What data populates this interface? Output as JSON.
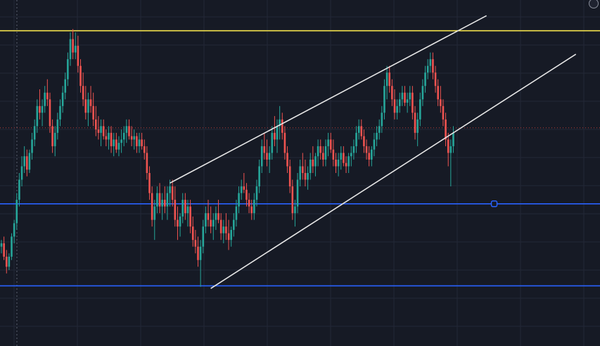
{
  "colors": {
    "background": "#161a25",
    "grid": "#232836",
    "up_candle": "#26a69a",
    "down_candle": "#ef5350",
    "resistance_line": "#f2e14c",
    "support_line": "#2962ff",
    "channel_line": "#e6e6e6",
    "last_price_dotted": "#b23a3a",
    "crosshair": "#5a6070"
  },
  "widget": {
    "badge_icon": "settings-dot-icon",
    "badge_text": ""
  },
  "chart_data": {
    "type": "candlestick",
    "title": "",
    "xlabel": "",
    "ylabel": "",
    "grid": true,
    "ylim": [
      0,
      100
    ],
    "xlim": [
      0,
      235
    ],
    "horizontal_levels": [
      {
        "name": "resistance",
        "value": 92.5,
        "color": "#f2e14c"
      },
      {
        "name": "support-upper",
        "value": 40.8,
        "color": "#2962ff"
      },
      {
        "name": "support-lower",
        "value": 16.3,
        "color": "#2962ff"
      }
    ],
    "last_price_marker": 63.5,
    "channel_lines": [
      {
        "name": "channel-upper",
        "x1": 66,
        "y1": 47,
        "x2": 190,
        "y2": 97
      },
      {
        "name": "channel-lower",
        "x1": 82,
        "y1": 15.5,
        "x2": 225,
        "y2": 85.5
      }
    ],
    "anchor_marker": {
      "x": 193,
      "y": 40.8
    },
    "candles": [
      [
        0,
        28,
        30,
        26,
        29
      ],
      [
        1,
        29,
        31,
        24,
        25
      ],
      [
        2,
        25,
        27,
        20,
        22
      ],
      [
        3,
        22,
        26,
        21,
        25
      ],
      [
        4,
        25,
        32,
        24,
        31
      ],
      [
        5,
        31,
        36,
        29,
        35
      ],
      [
        6,
        35,
        44,
        33,
        42
      ],
      [
        7,
        42,
        50,
        40,
        48
      ],
      [
        8,
        48,
        55,
        46,
        52
      ],
      [
        9,
        52,
        58,
        50,
        55
      ],
      [
        10,
        55,
        57,
        49,
        51
      ],
      [
        11,
        51,
        57,
        50,
        56
      ],
      [
        12,
        56,
        62,
        54,
        60
      ],
      [
        13,
        60,
        66,
        58,
        64
      ],
      [
        14,
        64,
        72,
        62,
        70
      ],
      [
        15,
        70,
        75,
        66,
        68
      ],
      [
        16,
        68,
        72,
        64,
        70
      ],
      [
        17,
        70,
        76,
        68,
        74
      ],
      [
        18,
        74,
        78,
        70,
        72
      ],
      [
        19,
        72,
        74,
        62,
        64
      ],
      [
        20,
        64,
        66,
        56,
        58
      ],
      [
        21,
        58,
        64,
        55,
        62
      ],
      [
        22,
        62,
        68,
        60,
        66
      ],
      [
        23,
        66,
        72,
        64,
        70
      ],
      [
        24,
        70,
        76,
        68,
        74
      ],
      [
        25,
        74,
        80,
        72,
        78
      ],
      [
        26,
        78,
        86,
        76,
        84
      ],
      [
        27,
        84,
        92,
        82,
        90
      ],
      [
        28,
        90,
        93,
        84,
        86
      ],
      [
        29,
        86,
        92,
        84,
        88
      ],
      [
        30,
        88,
        91,
        80,
        82
      ],
      [
        31,
        82,
        84,
        74,
        76
      ],
      [
        32,
        76,
        80,
        70,
        72
      ],
      [
        33,
        72,
        76,
        66,
        68
      ],
      [
        34,
        68,
        74,
        64,
        72
      ],
      [
        35,
        72,
        76,
        68,
        70
      ],
      [
        36,
        70,
        74,
        64,
        66
      ],
      [
        37,
        66,
        70,
        61,
        63
      ],
      [
        38,
        63,
        67,
        60,
        62
      ],
      [
        39,
        62,
        66,
        58,
        64
      ],
      [
        40,
        64,
        66,
        60,
        61
      ],
      [
        41,
        61,
        63,
        58,
        60
      ],
      [
        42,
        60,
        64,
        57,
        62
      ],
      [
        43,
        62,
        64,
        56,
        58
      ],
      [
        44,
        58,
        62,
        55,
        60
      ],
      [
        45,
        60,
        62,
        56,
        57
      ],
      [
        46,
        57,
        61,
        55,
        59
      ],
      [
        47,
        59,
        63,
        56,
        60
      ],
      [
        48,
        60,
        64,
        58,
        62
      ],
      [
        49,
        62,
        66,
        59,
        64
      ],
      [
        50,
        64,
        66,
        60,
        61
      ],
      [
        51,
        61,
        64,
        58,
        60
      ],
      [
        52,
        60,
        63,
        57,
        61
      ],
      [
        53,
        61,
        62,
        56,
        58
      ],
      [
        54,
        58,
        62,
        56,
        60
      ],
      [
        55,
        60,
        62,
        57,
        58
      ],
      [
        56,
        58,
        60,
        54,
        56
      ],
      [
        57,
        56,
        58,
        48,
        50
      ],
      [
        58,
        50,
        52,
        42,
        44
      ],
      [
        59,
        44,
        46,
        34,
        36
      ],
      [
        60,
        36,
        42,
        30,
        40
      ],
      [
        61,
        40,
        46,
        38,
        44
      ],
      [
        62,
        44,
        47,
        38,
        40
      ],
      [
        63,
        40,
        44,
        36,
        42
      ],
      [
        64,
        42,
        46,
        38,
        40
      ],
      [
        65,
        40,
        46,
        36,
        44
      ],
      [
        66,
        44,
        48,
        40,
        46
      ],
      [
        67,
        46,
        48,
        40,
        42
      ],
      [
        68,
        42,
        46,
        34,
        36
      ],
      [
        69,
        36,
        40,
        30,
        34
      ],
      [
        70,
        34,
        38,
        31,
        37
      ],
      [
        71,
        37,
        44,
        35,
        42
      ],
      [
        72,
        42,
        44,
        36,
        38
      ],
      [
        73,
        38,
        42,
        34,
        40
      ],
      [
        74,
        40,
        42,
        32,
        34
      ],
      [
        75,
        34,
        37,
        28,
        30
      ],
      [
        76,
        30,
        33,
        26,
        28
      ],
      [
        77,
        28,
        31,
        22,
        24
      ],
      [
        78,
        24,
        30,
        16,
        28
      ],
      [
        79,
        28,
        36,
        26,
        34
      ],
      [
        80,
        34,
        40,
        32,
        38
      ],
      [
        81,
        38,
        42,
        34,
        36
      ],
      [
        82,
        36,
        40,
        32,
        34
      ],
      [
        83,
        34,
        38,
        30,
        36
      ],
      [
        84,
        36,
        40,
        33,
        38
      ],
      [
        85,
        38,
        42,
        35,
        36
      ],
      [
        86,
        36,
        38,
        30,
        32
      ],
      [
        87,
        32,
        36,
        29,
        34
      ],
      [
        88,
        34,
        38,
        30,
        32
      ],
      [
        89,
        32,
        36,
        27,
        30
      ],
      [
        90,
        30,
        34,
        28,
        33
      ],
      [
        91,
        33,
        38,
        31,
        36
      ],
      [
        92,
        36,
        42,
        34,
        40
      ],
      [
        93,
        40,
        46,
        38,
        44
      ],
      [
        94,
        44,
        48,
        42,
        46
      ],
      [
        95,
        46,
        50,
        44,
        45
      ],
      [
        96,
        45,
        47,
        40,
        42
      ],
      [
        97,
        42,
        44,
        38,
        40
      ],
      [
        98,
        40,
        42,
        36,
        38
      ],
      [
        99,
        38,
        44,
        36,
        42
      ],
      [
        100,
        42,
        48,
        40,
        46
      ],
      [
        101,
        46,
        54,
        44,
        52
      ],
      [
        102,
        52,
        60,
        50,
        58
      ],
      [
        103,
        58,
        62,
        54,
        56
      ],
      [
        104,
        56,
        60,
        52,
        54
      ],
      [
        105,
        54,
        58,
        50,
        56
      ],
      [
        106,
        56,
        64,
        54,
        62
      ],
      [
        107,
        62,
        67,
        58,
        60
      ],
      [
        108,
        60,
        66,
        56,
        64
      ],
      [
        109,
        64,
        70,
        60,
        66
      ],
      [
        110,
        66,
        68,
        60,
        62
      ],
      [
        111,
        62,
        64,
        54,
        56
      ],
      [
        112,
        56,
        58,
        50,
        52
      ],
      [
        113,
        52,
        54,
        44,
        46
      ],
      [
        114,
        46,
        48,
        36,
        38
      ],
      [
        115,
        38,
        42,
        34,
        40
      ],
      [
        116,
        40,
        50,
        38,
        48
      ],
      [
        117,
        48,
        54,
        46,
        52
      ],
      [
        118,
        52,
        56,
        48,
        50
      ],
      [
        119,
        50,
        54,
        46,
        48
      ],
      [
        120,
        48,
        52,
        45,
        50
      ],
      [
        121,
        50,
        56,
        48,
        54
      ],
      [
        122,
        54,
        58,
        50,
        52
      ],
      [
        123,
        52,
        56,
        49,
        55
      ],
      [
        124,
        55,
        60,
        52,
        58
      ],
      [
        125,
        58,
        60,
        54,
        56
      ],
      [
        126,
        56,
        58,
        52,
        54
      ],
      [
        127,
        54,
        60,
        52,
        58
      ],
      [
        128,
        58,
        62,
        55,
        60
      ],
      [
        129,
        60,
        62,
        56,
        57
      ],
      [
        130,
        57,
        60,
        52,
        54
      ],
      [
        131,
        54,
        56,
        50,
        52
      ],
      [
        132,
        52,
        56,
        49,
        54
      ],
      [
        133,
        54,
        58,
        51,
        56
      ],
      [
        134,
        56,
        58,
        52,
        53
      ],
      [
        135,
        53,
        55,
        50,
        52
      ],
      [
        136,
        52,
        56,
        50,
        55
      ],
      [
        137,
        55,
        58,
        52,
        56
      ],
      [
        138,
        56,
        60,
        54,
        58
      ],
      [
        139,
        58,
        64,
        56,
        62
      ],
      [
        140,
        62,
        66,
        60,
        64
      ],
      [
        141,
        64,
        66,
        60,
        61
      ],
      [
        142,
        61,
        63,
        56,
        58
      ],
      [
        143,
        58,
        60,
        54,
        56
      ],
      [
        144,
        56,
        58,
        52,
        54
      ],
      [
        145,
        54,
        58,
        52,
        57
      ],
      [
        146,
        57,
        62,
        55,
        60
      ],
      [
        147,
        60,
        64,
        58,
        62
      ],
      [
        148,
        62,
        66,
        60,
        64
      ],
      [
        149,
        64,
        70,
        62,
        68
      ],
      [
        150,
        68,
        78,
        66,
        76
      ],
      [
        151,
        76,
        82,
        72,
        80
      ],
      [
        152,
        80,
        82,
        74,
        76
      ],
      [
        153,
        76,
        78,
        70,
        72
      ],
      [
        154,
        72,
        75,
        66,
        68
      ],
      [
        155,
        68,
        72,
        66,
        70
      ],
      [
        156,
        70,
        74,
        68,
        72
      ],
      [
        157,
        72,
        76,
        70,
        74
      ],
      [
        158,
        74,
        76,
        70,
        71
      ],
      [
        159,
        71,
        74,
        68,
        72
      ],
      [
        160,
        72,
        76,
        70,
        74
      ],
      [
        161,
        74,
        76,
        66,
        68
      ],
      [
        162,
        68,
        70,
        60,
        62
      ],
      [
        163,
        62,
        68,
        58,
        66
      ],
      [
        164,
        66,
        74,
        64,
        72
      ],
      [
        165,
        72,
        78,
        70,
        76
      ],
      [
        166,
        76,
        82,
        74,
        80
      ],
      [
        167,
        80,
        84,
        78,
        82
      ],
      [
        168,
        82,
        86,
        80,
        84
      ],
      [
        169,
        84,
        86,
        78,
        80
      ],
      [
        170,
        80,
        82,
        74,
        76
      ],
      [
        171,
        76,
        78,
        70,
        72
      ],
      [
        172,
        72,
        76,
        68,
        70
      ],
      [
        173,
        70,
        72,
        64,
        66
      ],
      [
        174,
        66,
        68,
        58,
        60
      ],
      [
        175,
        60,
        62,
        52,
        56
      ],
      [
        176,
        56,
        60,
        46,
        58
      ],
      [
        177,
        58,
        64,
        56,
        62
      ]
    ]
  }
}
